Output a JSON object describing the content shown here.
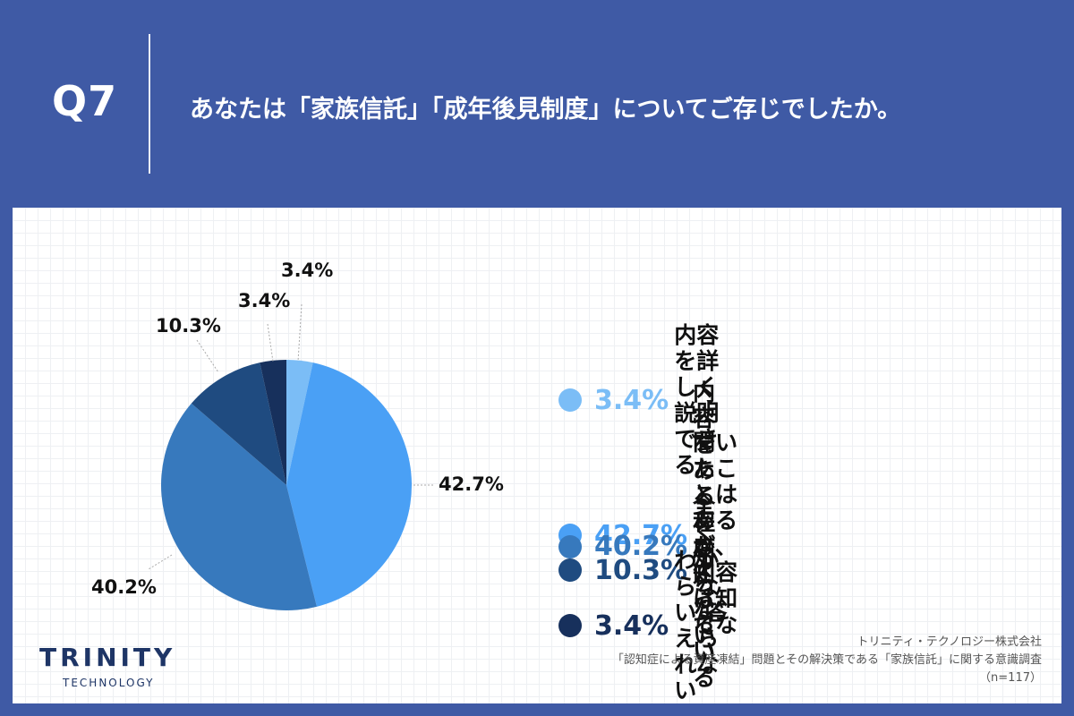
{
  "question": {
    "number": "Q7",
    "text": "あなたは「家族信託」「成年後見制度」についてご存じでしたか。"
  },
  "chart_data": {
    "type": "pie",
    "categories": [
      "内容を詳しく説明できる",
      "内容をある程度知っている",
      "聞いたことはあるが、\n内容は知らない",
      "全く知らない",
      "わからない/答えられない"
    ],
    "values": [
      3.4,
      42.7,
      40.2,
      10.3,
      3.4
    ],
    "labels": [
      "3.4%",
      "42.7%",
      "40.2%",
      "10.3%",
      "3.4%"
    ],
    "colors": [
      "#7bbdf6",
      "#4aa0f5",
      "#3779bd",
      "#1f4b80",
      "#17305c"
    ],
    "legend_pct_colors": [
      "#7bbdf6",
      "#4aa0f5",
      "#3779bd",
      "#1f4b80",
      "#17305c"
    ],
    "legend_placement": "right"
  },
  "branding": {
    "logo_main": "TRINITY",
    "logo_sub": "TECHNOLOGY"
  },
  "source": {
    "company": "トリニティ・テクノロジー株式会社",
    "survey": "「認知症による資産凍結」問題とその解決策である「家族信託」に関する意識調査",
    "sample": "（n=117）"
  }
}
